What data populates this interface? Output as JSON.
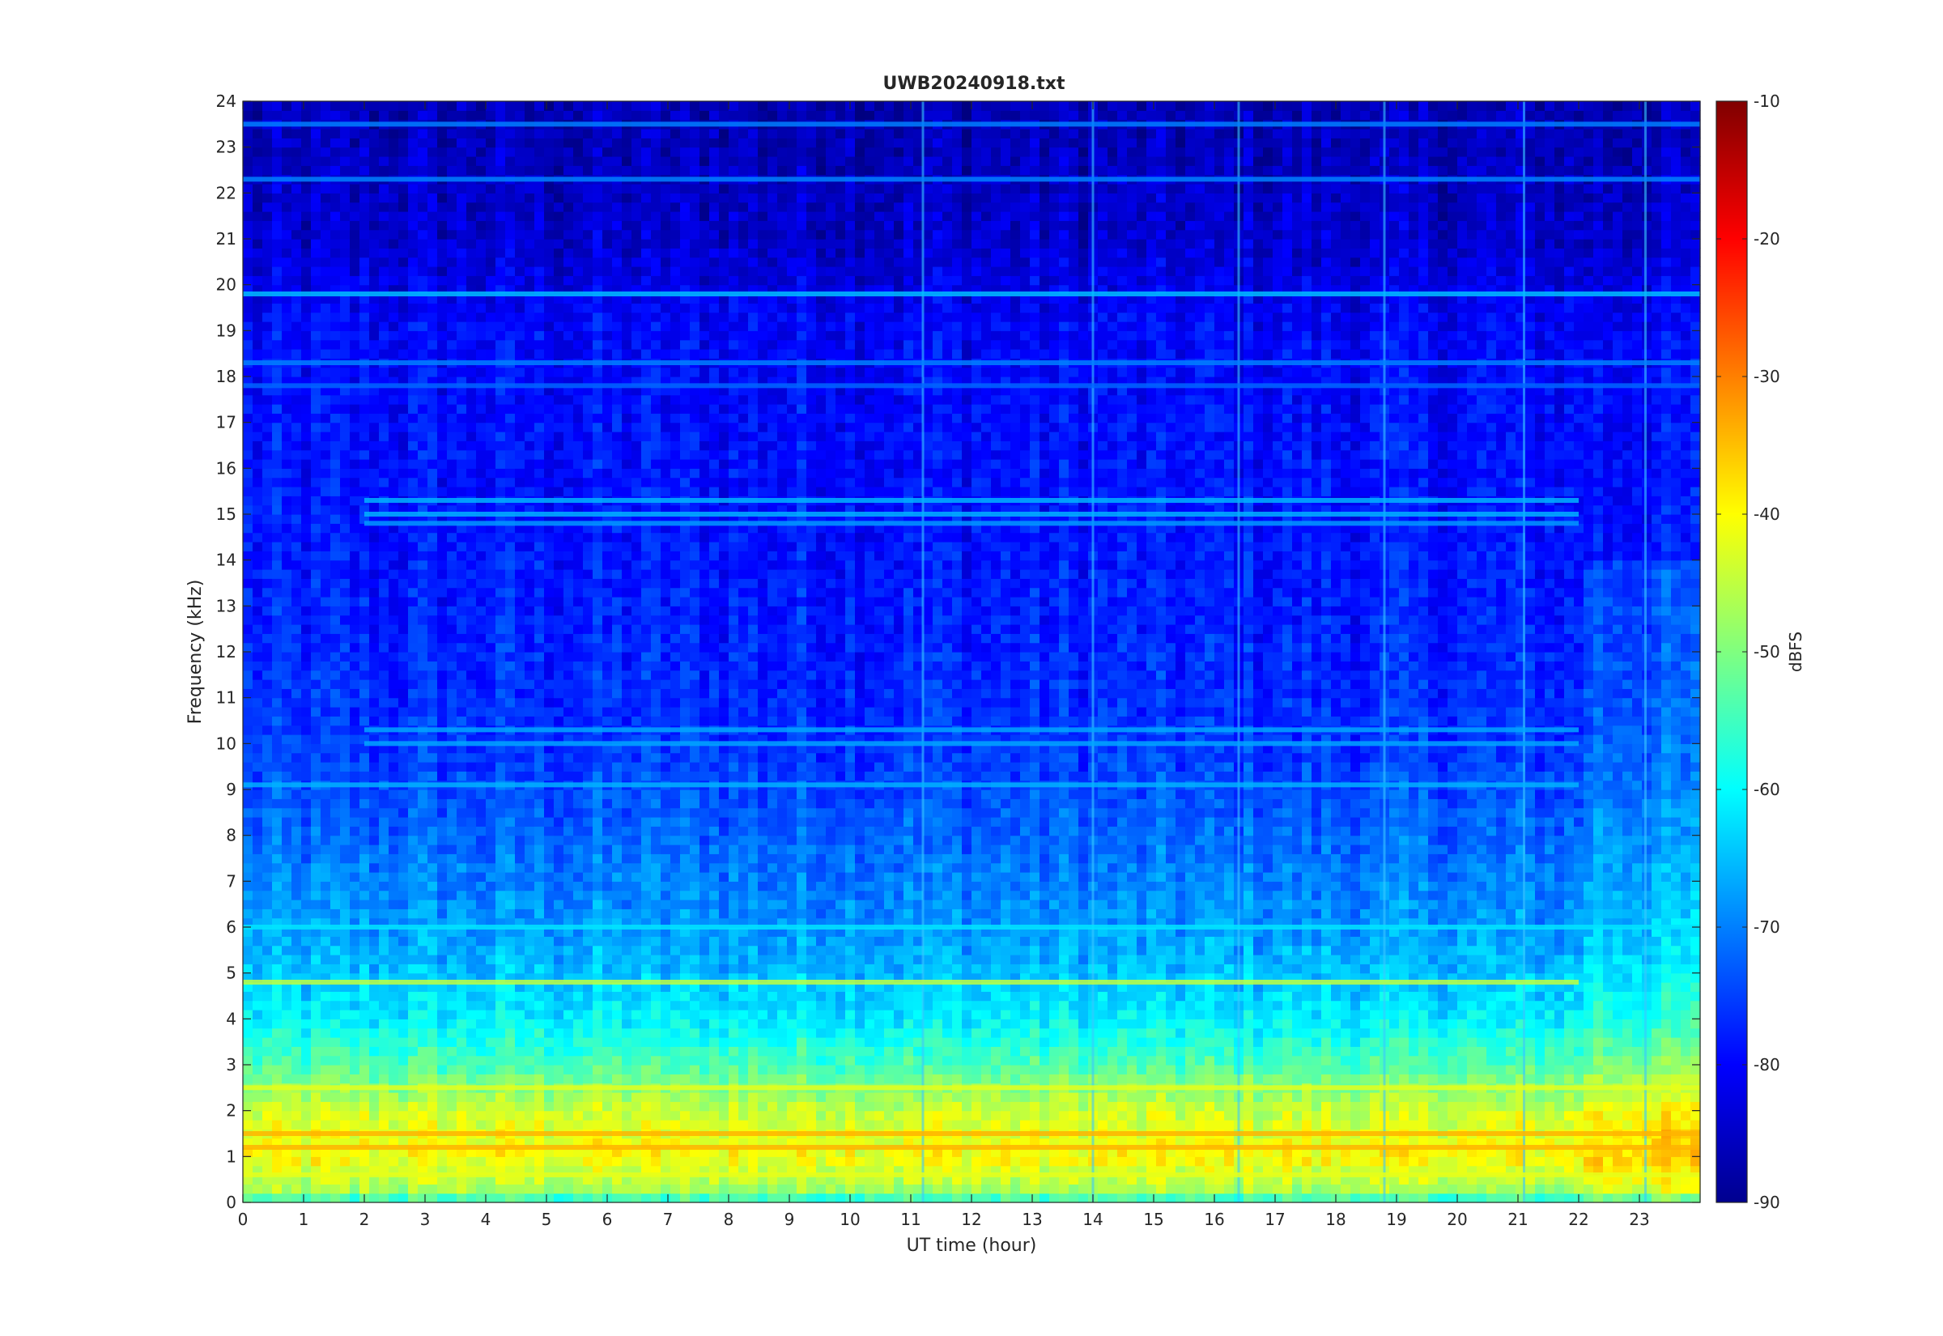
{
  "chart_data": {
    "type": "heatmap",
    "title": "UWB20240918.txt",
    "xlabel": "UT time (hour)",
    "ylabel": "Frequency (kHz)",
    "xlim": [
      0,
      24
    ],
    "ylim": [
      0,
      24
    ],
    "x_ticks": [
      0,
      1,
      2,
      3,
      4,
      5,
      6,
      7,
      8,
      9,
      10,
      11,
      12,
      13,
      14,
      15,
      16,
      17,
      18,
      19,
      20,
      21,
      22,
      23
    ],
    "y_ticks": [
      0,
      1,
      2,
      3,
      4,
      5,
      6,
      7,
      8,
      9,
      10,
      11,
      12,
      13,
      14,
      15,
      16,
      17,
      18,
      19,
      20,
      21,
      22,
      23,
      24
    ],
    "colorbar": {
      "label": "dBFS",
      "colormap": "jet",
      "clim": [
        -90,
        -10
      ],
      "ticks": [
        -10,
        -20,
        -30,
        -40,
        -50,
        -60,
        -70,
        -80,
        -90
      ]
    },
    "background_level_profile": [
      {
        "f_khz": 0,
        "dbfs": -58
      },
      {
        "f_khz": 0.3,
        "dbfs": -47
      },
      {
        "f_khz": 1,
        "dbfs": -40
      },
      {
        "f_khz": 2,
        "dbfs": -44
      },
      {
        "f_khz": 3,
        "dbfs": -54
      },
      {
        "f_khz": 4,
        "dbfs": -61
      },
      {
        "f_khz": 5,
        "dbfs": -65
      },
      {
        "f_khz": 6,
        "dbfs": -68
      },
      {
        "f_khz": 8,
        "dbfs": -72
      },
      {
        "f_khz": 10,
        "dbfs": -76
      },
      {
        "f_khz": 13,
        "dbfs": -78
      },
      {
        "f_khz": 16,
        "dbfs": -79
      },
      {
        "f_khz": 19,
        "dbfs": -80
      },
      {
        "f_khz": 21,
        "dbfs": -84
      },
      {
        "f_khz": 24,
        "dbfs": -86
      }
    ],
    "persistent_lines": [
      {
        "f_khz": 19.8,
        "t_start": 0,
        "t_end": 24,
        "dbfs": -65
      },
      {
        "f_khz": 18.3,
        "t_start": 0,
        "t_end": 24,
        "dbfs": -70
      },
      {
        "f_khz": 22.3,
        "t_start": 0,
        "t_end": 24,
        "dbfs": -70
      },
      {
        "f_khz": 17.8,
        "t_start": 0,
        "t_end": 24,
        "dbfs": -72
      },
      {
        "f_khz": 23.5,
        "t_start": 0,
        "t_end": 24,
        "dbfs": -70
      },
      {
        "f_khz": 15.3,
        "t_start": 2,
        "t_end": 22,
        "dbfs": -66
      },
      {
        "f_khz": 15.0,
        "t_start": 2,
        "t_end": 22,
        "dbfs": -66
      },
      {
        "f_khz": 14.8,
        "t_start": 2,
        "t_end": 22,
        "dbfs": -68
      },
      {
        "f_khz": 10.3,
        "t_start": 2,
        "t_end": 22,
        "dbfs": -67
      },
      {
        "f_khz": 10.0,
        "t_start": 2,
        "t_end": 22,
        "dbfs": -67
      },
      {
        "f_khz": 9.1,
        "t_start": 0,
        "t_end": 22,
        "dbfs": -66
      },
      {
        "f_khz": 6.0,
        "t_start": 0,
        "t_end": 24,
        "dbfs": -62
      },
      {
        "f_khz": 4.8,
        "t_start": 0,
        "t_end": 22,
        "dbfs": -45
      },
      {
        "f_khz": 2.5,
        "t_start": 0,
        "t_end": 24,
        "dbfs": -42
      },
      {
        "f_khz": 1.5,
        "t_start": 0,
        "t_end": 24,
        "dbfs": -34
      },
      {
        "f_khz": 1.2,
        "t_start": 0,
        "t_end": 24,
        "dbfs": -34
      },
      {
        "f_khz": 0.6,
        "t_start": 0,
        "t_end": 24,
        "dbfs": -42
      }
    ],
    "vertical_streaks_hours": [
      11.2,
      14.0,
      16.4,
      18.8,
      21.1,
      23.1
    ]
  }
}
